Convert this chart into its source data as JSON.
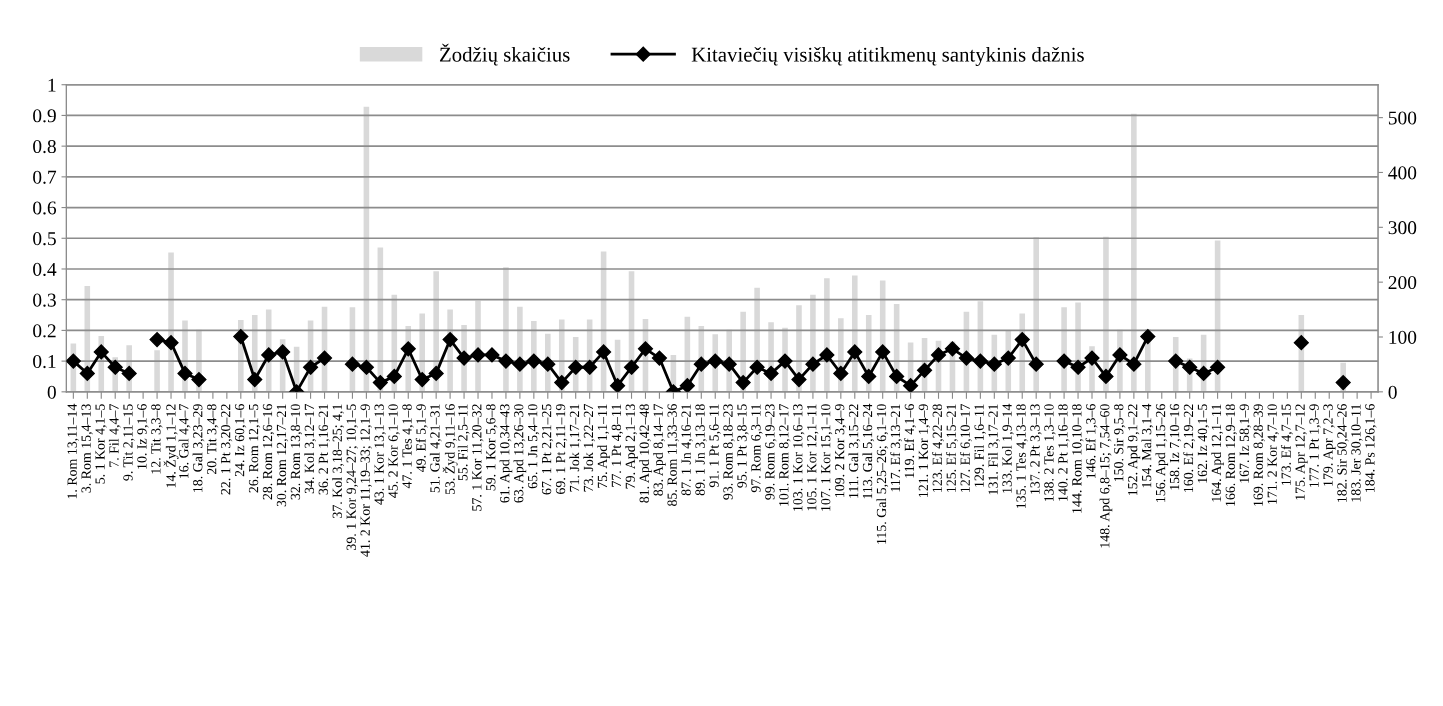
{
  "chart_data": {
    "type": "bar",
    "categories": [
      "1. Rom 13,11–14",
      "3. Rom 15,4–13",
      "5. 1 Kor 4,1–5",
      "7. Fil 4,4–7",
      "9. Tit 2,11–15",
      "10. Iz 9,1–6",
      "12. Tit 3,3–8",
      "14. Žyd 1,1–12",
      "16. Gal 4,4–7",
      "18. Gal 3,23–29",
      "20. Tit 3,4–8",
      "22. 1 Pt 3,20–22",
      "24. Iz 60,1–6",
      "26. Rom 12,1–5",
      "28. Rom 12,6–16",
      "30. Rom 12,17–21",
      "32. Rom 13,8–10",
      "34. Kol 3,12–17",
      "36. 2 Pt 1,16–21",
      "37. Kol 3,18–25; 4,1",
      "39. 1 Kor 9,24–27; 10,1–5",
      "41. 2 Kor 11,19–33; 12,1–9",
      "43. 1 Kor 13,1–13",
      "45. 2 Kor 6,1–10",
      "47. 1 Tes 4,1–8",
      "49. Ef 5,1–9",
      "51. Gal 4,21–31",
      "53. Žyd 9,11–16",
      "55. Fil 2,5–11",
      "57. 1 Kor 11,20–32",
      "59. 1 Kor 5,6–8",
      "61. Apd 10,34–43",
      "63. Apd 13,26–30",
      "65. 1 Jn 5,4–10",
      "67. 1 Pt 2,21–25",
      "69. 1 Pt 2,11–19",
      "71. Jok 1,17–21",
      "73. Jok 1,22–27",
      "75. Apd 1,1–11",
      "77. 1 Pt 4,8–11",
      "79. Apd 2,1–13",
      "81. Apd 10,42–48",
      "83. Apd 8,14–17",
      "85. Rom 11,33–36",
      "87. 1 Jn 4,16–21",
      "89. 1 Jn 3,13–18",
      "91. 1 Pt 5,6–11",
      "93. Rom 8,18–23",
      "95. 1 Pt 3,8–15",
      "97. Rom 6,3–11",
      "99. Rom 6,19–23",
      "101. Rom 8,12–17",
      "103. 1 Kor 10,6–13",
      "105. 1 Kor 12,1–11",
      "107. 1 Kor 15,1–10",
      "109. 2 Kor 3,4–9",
      "111. Gal 3,15–22",
      "113. Gal 5,16–24",
      "115. Gal 5,25–26; 6,1–10",
      "117. Ef 3,13–21",
      "119. Ef 4,1–6",
      "121. 1 Kor 1,4–9",
      "123. Ef 4,22–28",
      "125. Ef 5,15–21",
      "127. Ef 6,10–17",
      "129. Fil 1,6–11",
      "131. Fil 3,17–21",
      "133. Kol 1,9–14",
      "135. 1 Tes 4,13–18",
      "137. 2 Pt 3,3–13",
      "138. 2 Tes 1,3–10",
      "140. 2 Pt 1,16–18",
      "144. Rom 10,10–18",
      "146. Ef 1,3–6",
      "148. Apd 6,8–15; 7,54–60",
      "150. Sir 9,5–8",
      "152. Apd 9,1–22",
      "154. Mal 3,1–4",
      "156. Apd 1,15–26",
      "158. Iz 7,10–16",
      "160. Ef 2,19–22",
      "162. Iz 40,1–5",
      "164. Apd 12,1–11",
      "166. Rom 12,9–18",
      "167. Iz 58,1–9",
      "169. Rom 8,28–39",
      "171. 2 Kor 4,7–10",
      "173. Ef 4,7–15",
      "175. Apr 12,7–12",
      "177. 1 Pt 1,3–9",
      "179. Apr 7,2–3",
      "182. Sir 50,24–26",
      "183. Jer 30,10–11",
      "184. Ps 126,1–6"
    ],
    "series": [
      {
        "name": "Žodžių skaičius",
        "axis": "y2",
        "color": "#d9d9d9",
        "values": [
          88,
          193,
          102,
          63,
          85,
          null,
          76,
          254,
          130,
          113,
          null,
          null,
          131,
          140,
          150,
          96,
          82,
          130,
          155,
          null,
          154,
          520,
          263,
          177,
          120,
          143,
          220,
          150,
          122,
          166,
          null,
          227,
          155,
          129,
          106,
          132,
          100,
          132,
          256,
          95,
          220,
          133,
          null,
          67,
          137,
          120,
          105,
          113,
          146,
          190,
          127,
          117,
          158,
          177,
          207,
          134,
          212,
          140,
          203,
          160,
          90,
          98,
          93,
          92,
          146,
          165,
          104,
          112,
          143,
          282,
          null,
          154,
          163,
          83,
          283,
          113,
          507,
          114,
          null,
          100,
          61,
          104,
          276,
          null,
          null,
          null,
          null,
          null,
          140,
          null,
          null,
          53,
          null,
          null
        ]
      },
      {
        "name": "Kitaviečių visiškų atitikmenų santykinis dažnis",
        "type": "line",
        "axis": "y",
        "color": "#000000",
        "marker": "diamond",
        "line_style": "solid",
        "values": [
          0.1,
          0.06,
          0.13,
          0.08,
          0.06,
          null,
          0.17,
          0.16,
          0.06,
          0.04,
          null,
          null,
          0.18,
          0.04,
          0.12,
          0.13,
          0,
          0.08,
          0.11,
          null,
          0.09,
          0.08,
          0.03,
          0.05,
          0.14,
          0.04,
          0.06,
          0.17,
          0.11,
          0.12,
          0.12,
          0.1,
          0.09,
          0.1,
          0.09,
          0.03,
          0.08,
          0.08,
          0.13,
          0.02,
          0.08,
          0.14,
          0.11,
          0,
          0.02,
          0.09,
          0.1,
          0.09,
          0.03,
          0.08,
          0.06,
          0.1,
          0.04,
          0.09,
          0.12,
          0.06,
          0.13,
          0.05,
          0.13,
          0.05,
          0.02,
          0.07,
          0.12,
          0.14,
          0.11,
          0.1,
          0.09,
          0.11,
          0.17,
          0.09,
          null,
          0.1,
          0.08,
          0.11,
          0.05,
          0.12,
          0.09,
          0.18,
          null,
          0.1,
          0.08,
          0.06,
          0.08,
          null,
          null,
          null,
          null,
          null,
          0.16,
          null,
          null,
          0.03,
          null,
          null
        ]
      }
    ],
    "ylim": [
      0,
      1
    ],
    "yticks": [
      0,
      0.1,
      0.2,
      0.3,
      0.4,
      0.5,
      0.6,
      0.7,
      0.8,
      0.9,
      1
    ],
    "y2lim": [
      0,
      560
    ],
    "y2ticks": [
      0,
      100,
      200,
      300,
      400,
      500
    ],
    "grid": "y",
    "legend": "top"
  }
}
